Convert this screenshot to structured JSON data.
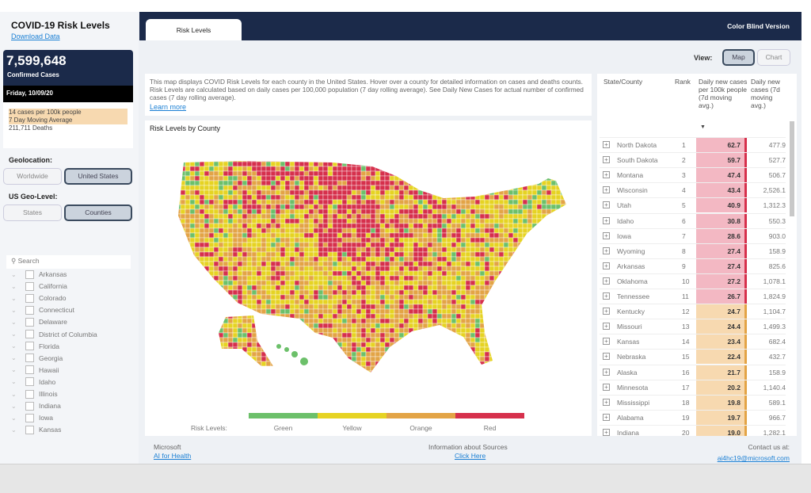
{
  "sidebar": {
    "title": "COVID-19 Risk Levels",
    "download": "Download Data",
    "confirmed": "7,599,648",
    "confirmed_label": "Confirmed Cases",
    "date": "Friday, 10/09/20",
    "stat1": "14 cases per 100k people",
    "stat2": "7 Day Moving Average",
    "deaths": "211,711 Deaths",
    "geolocation_label": "Geolocation:",
    "geo_options": [
      "Worldwide",
      "United States"
    ],
    "geo_selected": "United States",
    "geolevel_label": "US Geo-Level:",
    "level_options": [
      "States",
      "Counties"
    ],
    "level_selected": "Counties",
    "search_placeholder": "Search",
    "states": [
      "Arkansas",
      "California",
      "Colorado",
      "Connecticut",
      "Delaware",
      "District of Columbia",
      "Florida",
      "Georgia",
      "Hawaii",
      "Idaho",
      "Illinois",
      "Indiana",
      "Iowa",
      "Kansas"
    ]
  },
  "header": {
    "tab": "Risk Levels",
    "color_blind": "Color Blind Version"
  },
  "view": {
    "label": "View:",
    "options": [
      "Map",
      "Chart"
    ],
    "selected": "Map"
  },
  "description": "This map displays COVID Risk Levels for each county in the United States. Hover over a county for detailed information on cases and deaths counts. Risk Levels are calculated based on daily cases per 100,000 population (7 day rolling average). See Daily New Cases for actual number of confirmed cases (7 day rolling average).",
  "learn_more": "Learn more",
  "map": {
    "title": "Risk Levels by County",
    "legend_label": "Risk Levels:",
    "levels": [
      {
        "name": "Green",
        "color": "#6cc06a"
      },
      {
        "name": "Yellow",
        "color": "#e6d323"
      },
      {
        "name": "Orange",
        "color": "#e3a446"
      },
      {
        "name": "Red",
        "color": "#d6304c"
      }
    ]
  },
  "table": {
    "headers": [
      "State/County",
      "Rank",
      "Daily new cases per 100k people (7d moving avg.)",
      "Daily new cases (7d moving avg.)"
    ],
    "rows": [
      [
        "North Dakota",
        "1",
        "62.7",
        "477.9",
        "red"
      ],
      [
        "South Dakota",
        "2",
        "59.7",
        "527.7",
        "red"
      ],
      [
        "Montana",
        "3",
        "47.4",
        "506.7",
        "red"
      ],
      [
        "Wisconsin",
        "4",
        "43.4",
        "2,526.1",
        "red"
      ],
      [
        "Utah",
        "5",
        "40.9",
        "1,312.3",
        "red"
      ],
      [
        "Idaho",
        "6",
        "30.8",
        "550.3",
        "red"
      ],
      [
        "Iowa",
        "7",
        "28.6",
        "903.0",
        "red"
      ],
      [
        "Wyoming",
        "8",
        "27.4",
        "158.9",
        "red"
      ],
      [
        "Arkansas",
        "9",
        "27.4",
        "825.6",
        "red"
      ],
      [
        "Oklahoma",
        "10",
        "27.2",
        "1,078.1",
        "red"
      ],
      [
        "Tennessee",
        "11",
        "26.7",
        "1,824.9",
        "red"
      ],
      [
        "Kentucky",
        "12",
        "24.7",
        "1,104.7",
        "orange"
      ],
      [
        "Missouri",
        "13",
        "24.4",
        "1,499.3",
        "orange"
      ],
      [
        "Kansas",
        "14",
        "23.4",
        "682.4",
        "orange"
      ],
      [
        "Nebraska",
        "15",
        "22.4",
        "432.7",
        "orange"
      ],
      [
        "Alaska",
        "16",
        "21.7",
        "158.9",
        "orange"
      ],
      [
        "Minnesota",
        "17",
        "20.2",
        "1,140.4",
        "orange"
      ],
      [
        "Mississippi",
        "18",
        "19.8",
        "589.1",
        "orange"
      ],
      [
        "Alabama",
        "19",
        "19.7",
        "966.7",
        "orange"
      ],
      [
        "Indiana",
        "20",
        "19.0",
        "1,282.1",
        "orange"
      ]
    ]
  },
  "footer": {
    "ms": "Microsoft",
    "ai": "AI for Health",
    "sources": "Information about Sources",
    "click": "Click Here",
    "contact": "Contact us at:",
    "email": "ai4hc19@microsoft.com"
  }
}
